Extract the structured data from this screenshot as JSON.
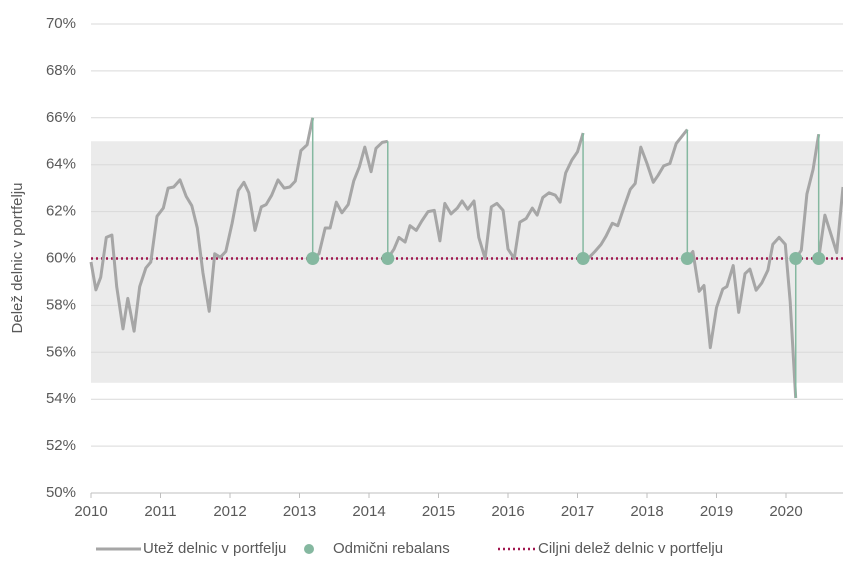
{
  "chart_data": {
    "type": "line",
    "y_label": "Delež delnic v portfelju",
    "xlim": [
      2010,
      2020.82
    ],
    "ylim": [
      50,
      70
    ],
    "xticks": [
      2010,
      2011,
      2012,
      2013,
      2014,
      2015,
      2016,
      2017,
      2018,
      2019,
      2020
    ],
    "yticks": [
      {
        "value": 50,
        "label": "50%"
      },
      {
        "value": 52,
        "label": "52%"
      },
      {
        "value": 54,
        "label": "54%"
      },
      {
        "value": 56,
        "label": "56%"
      },
      {
        "value": 58,
        "label": "58%"
      },
      {
        "value": 60,
        "label": "60%"
      },
      {
        "value": 62,
        "label": "62%"
      },
      {
        "value": 64,
        "label": "64%"
      },
      {
        "value": 66,
        "label": "66%"
      },
      {
        "value": 68,
        "label": "68%"
      },
      {
        "value": 70,
        "label": "70%"
      }
    ],
    "grid": true,
    "band": {
      "range": [
        54.7,
        65
      ],
      "color": "#ebebeb"
    },
    "series": [
      {
        "name": "Utež delnic v portfelju",
        "color": "#a6a6a6",
        "x": [
          2010.0,
          2010.07,
          2010.14,
          2010.22,
          2010.3,
          2010.37,
          2010.46,
          2010.53,
          2010.62,
          2010.7,
          2010.79,
          2010.86,
          2010.95,
          2011.04,
          2011.11,
          2011.19,
          2011.28,
          2011.37,
          2011.45,
          2011.53,
          2011.61,
          2011.7,
          2011.78,
          2011.86,
          2011.94,
          2012.03,
          2012.12,
          2012.2,
          2012.27,
          2012.36,
          2012.45,
          2012.52,
          2012.6,
          2012.69,
          2012.78,
          2012.86,
          2012.94,
          2013.02,
          2013.11,
          2013.19,
          2013.19,
          2013.28,
          2013.37,
          2013.44,
          2013.53,
          2013.61,
          2013.7,
          2013.78,
          2013.86,
          2013.94,
          2014.03,
          2014.1,
          2014.19,
          2014.27,
          2014.27,
          2014.36,
          2014.43,
          2014.52,
          2014.59,
          2014.68,
          2014.76,
          2014.85,
          2014.94,
          2015.02,
          2015.09,
          2015.18,
          2015.27,
          2015.34,
          2015.42,
          2015.51,
          2015.58,
          2015.67,
          2015.76,
          2015.84,
          2015.93,
          2016.0,
          2016.09,
          2016.17,
          2016.26,
          2016.35,
          2016.42,
          2016.5,
          2016.59,
          2016.68,
          2016.75,
          2016.83,
          2016.92,
          2017.0,
          2017.08,
          2017.08,
          2017.17,
          2017.25,
          2017.34,
          2017.41,
          2017.5,
          2017.58,
          2017.67,
          2017.76,
          2017.83,
          2017.91,
          2018.0,
          2018.09,
          2018.16,
          2018.24,
          2018.33,
          2018.42,
          2018.58,
          2018.58,
          2018.66,
          2018.75,
          2018.82,
          2018.91,
          2019.0,
          2019.09,
          2019.15,
          2019.24,
          2019.32,
          2019.41,
          2019.48,
          2019.57,
          2019.65,
          2019.74,
          2019.81,
          2019.9,
          2019.99,
          2020.06,
          2020.14,
          2020.14,
          2020.22,
          2020.3,
          2020.39,
          2020.47,
          2020.47,
          2020.56,
          2020.65,
          2020.73,
          2020.82
        ],
        "values": [
          59.85,
          58.66,
          59.2,
          60.9,
          61.0,
          58.8,
          57.0,
          58.3,
          56.9,
          58.8,
          59.6,
          59.85,
          61.8,
          62.15,
          63.0,
          63.05,
          63.35,
          62.65,
          62.25,
          61.3,
          59.4,
          57.75,
          60.2,
          60.05,
          60.3,
          61.5,
          62.9,
          63.25,
          62.8,
          61.2,
          62.2,
          62.3,
          62.7,
          63.35,
          63.0,
          63.05,
          63.3,
          64.6,
          64.85,
          66.0,
          60.0,
          60.2,
          61.3,
          61.3,
          62.4,
          61.95,
          62.3,
          63.3,
          63.9,
          64.75,
          63.7,
          64.7,
          64.95,
          65.0,
          60.0,
          60.4,
          60.9,
          60.7,
          61.4,
          61.2,
          61.6,
          62.0,
          62.05,
          60.75,
          62.35,
          61.9,
          62.15,
          62.45,
          62.1,
          62.45,
          60.9,
          60.0,
          62.2,
          62.35,
          62.05,
          60.4,
          60.0,
          61.55,
          61.7,
          62.15,
          61.85,
          62.6,
          62.8,
          62.7,
          62.4,
          63.65,
          64.2,
          64.55,
          65.35,
          60.0,
          60.05,
          60.3,
          60.6,
          60.95,
          61.5,
          61.4,
          62.2,
          62.95,
          63.2,
          64.75,
          64.05,
          63.25,
          63.55,
          63.95,
          64.05,
          64.9,
          65.5,
          60.0,
          60.3,
          58.6,
          58.85,
          56.2,
          57.9,
          58.7,
          58.8,
          59.7,
          57.7,
          59.35,
          59.55,
          58.65,
          58.95,
          59.5,
          60.6,
          60.9,
          60.6,
          58.15,
          54.05,
          60.0,
          60.35,
          62.75,
          63.8,
          65.3,
          60.0,
          61.85,
          61.0,
          60.25,
          63.05
        ]
      }
    ],
    "rebalance": {
      "name": "Odmični rebalans",
      "color": "#85b8a0",
      "x": [
        2013.19,
        2014.27,
        2017.08,
        2018.58,
        2020.14,
        2020.47
      ],
      "values": [
        60,
        60,
        60,
        60,
        60,
        60
      ]
    },
    "target": {
      "name": "Ciljni delež delnic v portfelju",
      "color": "#a0174f",
      "value": 60
    }
  }
}
